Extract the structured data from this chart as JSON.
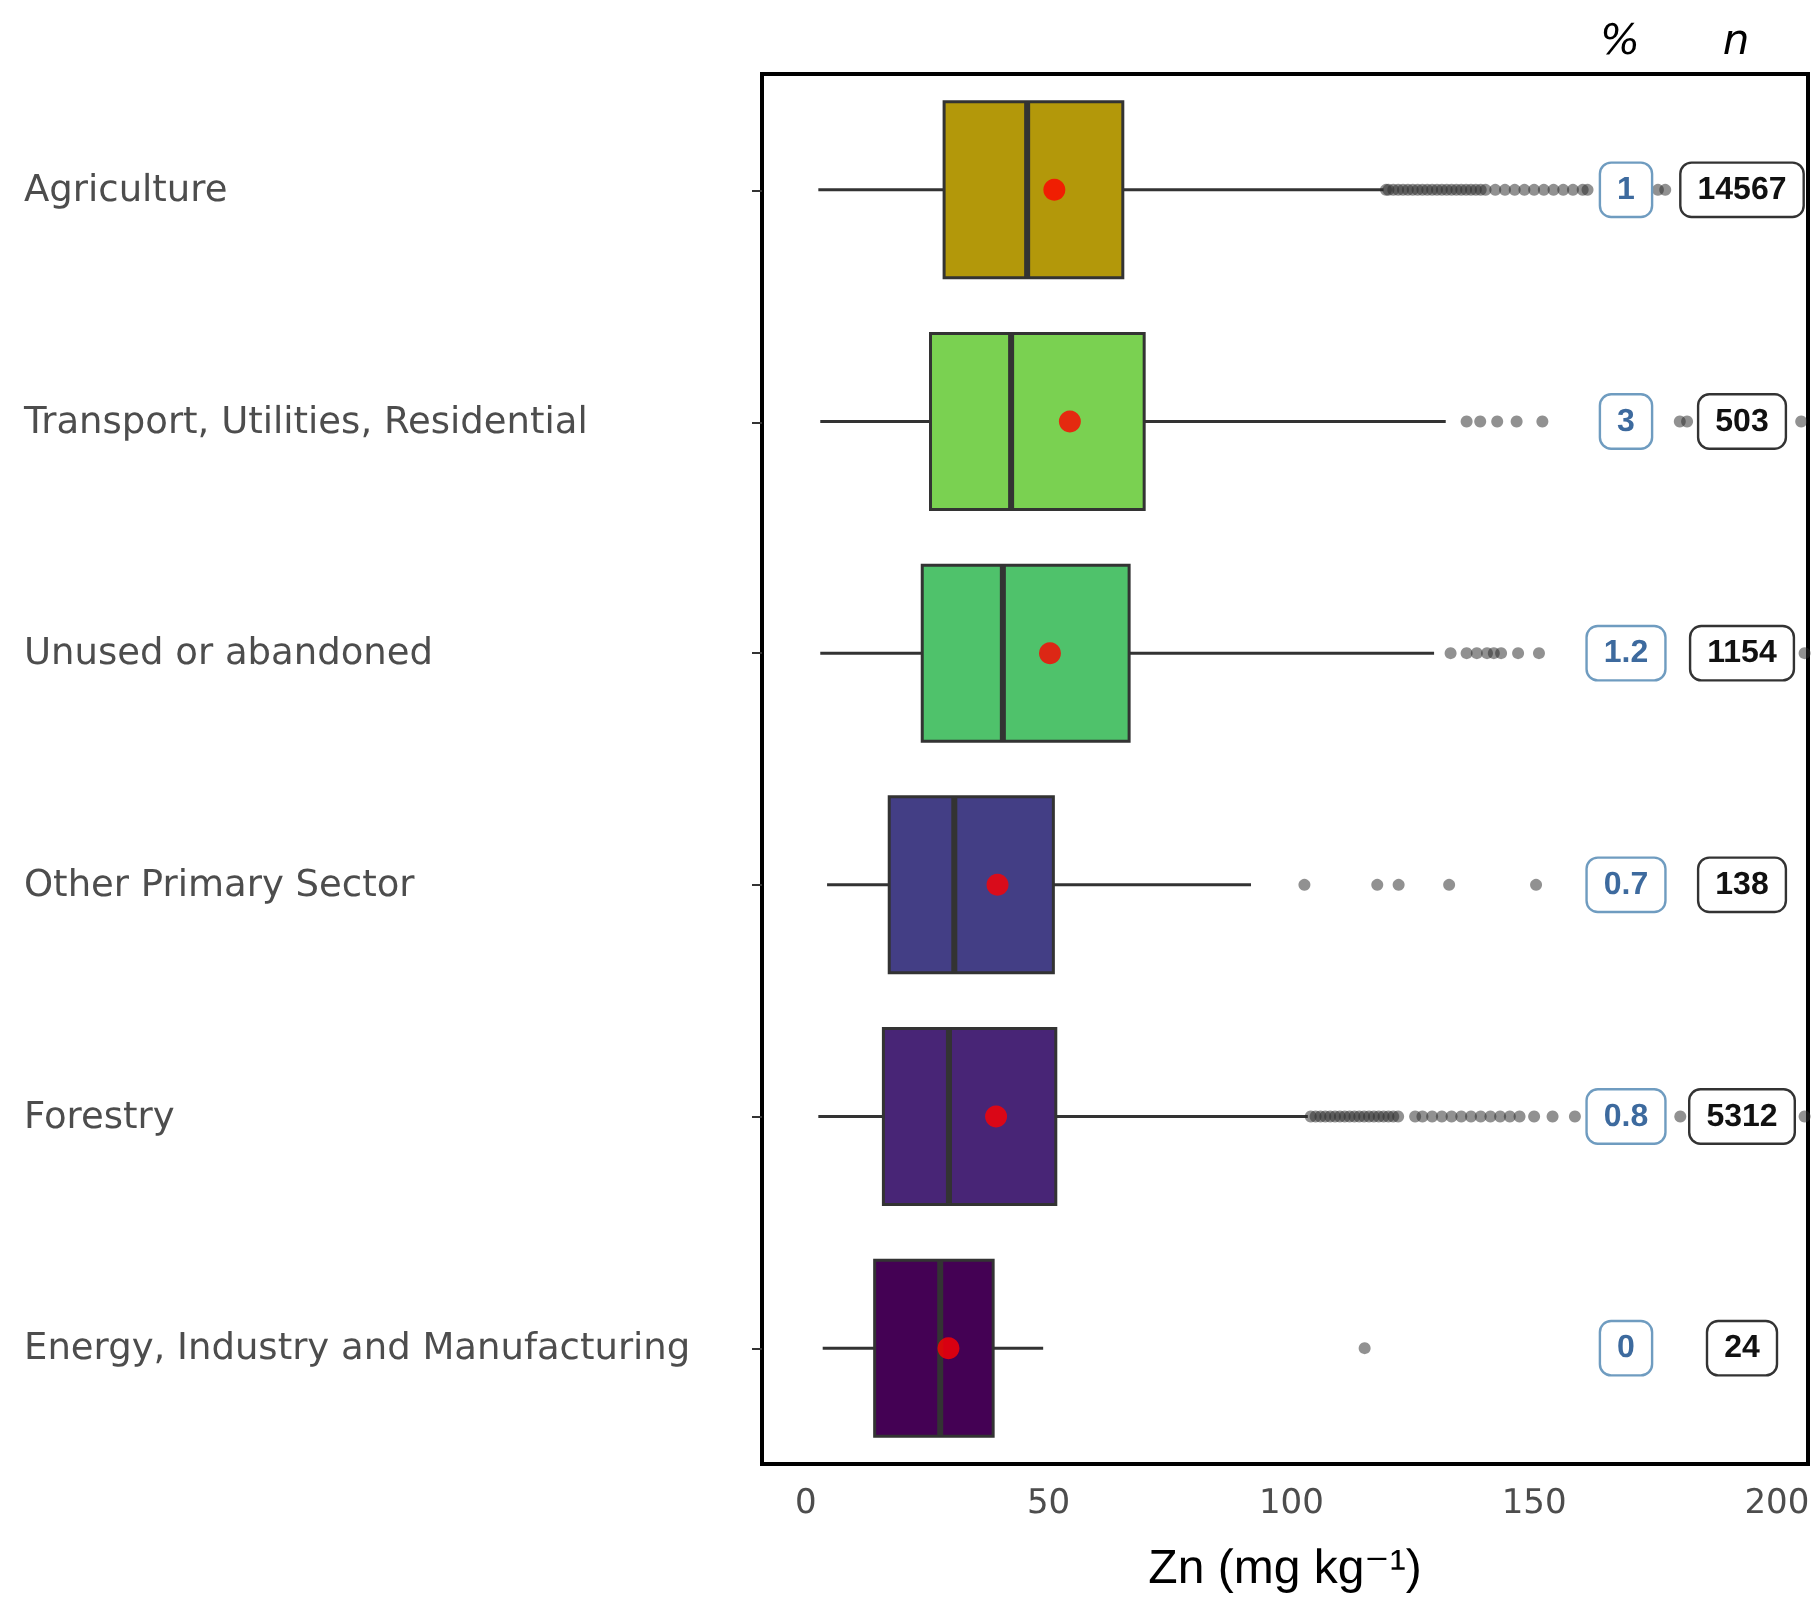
{
  "chart_data": {
    "type": "box",
    "orientation": "horizontal",
    "categories": [
      "Agriculture",
      "Transport, Utilities, Residential",
      "Unused or abandoned",
      "Other Primary Sector",
      "Forestry",
      "Energy, Industry and Manufacturing"
    ],
    "xlabel": "Zn (mg kg⁻¹)",
    "xlim": [
      -9,
      206.4
    ],
    "xticks": [
      0,
      50,
      100,
      150,
      200
    ],
    "grid": false,
    "colors": [
      "#b3980a",
      "#7ad151",
      "#4fc26b",
      "#433e85",
      "#482576",
      "#440154"
    ],
    "boxes": [
      {
        "low": 2.6,
        "q1": 28.5,
        "median": 45.6,
        "q3": 65.3,
        "high": 119,
        "mean": 51.2,
        "outliers": [
          119.5,
          120,
          121,
          122,
          123,
          124,
          125,
          126,
          127,
          128,
          129,
          130,
          131,
          132,
          133,
          134,
          135,
          136,
          137,
          138,
          139,
          140,
          142,
          144,
          146,
          148,
          150,
          152,
          154,
          156,
          158,
          160,
          161,
          175.5,
          177
        ]
      },
      {
        "low": 3,
        "q1": 25.7,
        "median": 42.3,
        "q3": 69.7,
        "high": 131.8,
        "mean": 54.4,
        "outliers": [
          136.1,
          138.9,
          142.4,
          146.4,
          151.7,
          180,
          181.5,
          205
        ]
      },
      {
        "low": 3,
        "q1": 24,
        "median": 40.6,
        "q3": 66.6,
        "high": 129.4,
        "mean": 50.3,
        "outliers": [
          132.8,
          136.1,
          138.2,
          140.3,
          141.7,
          143.2,
          146.7,
          151,
          205.7
        ]
      },
      {
        "low": 4.4,
        "q1": 17.2,
        "median": 30.6,
        "q3": 51,
        "high": 91.7,
        "mean": 39.5,
        "outliers": [
          102.7,
          117.7,
          122.1,
          132.5,
          150.4
        ]
      },
      {
        "low": 2.6,
        "q1": 16,
        "median": 29.5,
        "q3": 51.5,
        "high": 103.4,
        "mean": 39.2,
        "outliers": [
          104,
          105,
          106,
          107,
          108,
          109,
          110,
          111,
          112,
          113,
          114,
          115,
          116,
          117,
          118,
          119,
          120,
          121,
          122,
          125.5,
          127,
          129,
          131,
          133,
          135,
          137,
          139,
          141,
          143,
          145,
          147,
          150,
          153.8,
          158.4,
          180.1,
          205.7
        ]
      },
      {
        "low": 3.5,
        "q1": 14.2,
        "median": 27.7,
        "q3": 38.6,
        "high": 48.9,
        "mean": 29.4,
        "outliers": [
          115.1
        ]
      }
    ],
    "annotations": [
      "%",
      "n",
      "1",
      "14567",
      "3",
      "503",
      "1.2",
      "1154",
      "0.7",
      "138",
      "0.8",
      "5312",
      "0",
      "24"
    ]
  }
}
